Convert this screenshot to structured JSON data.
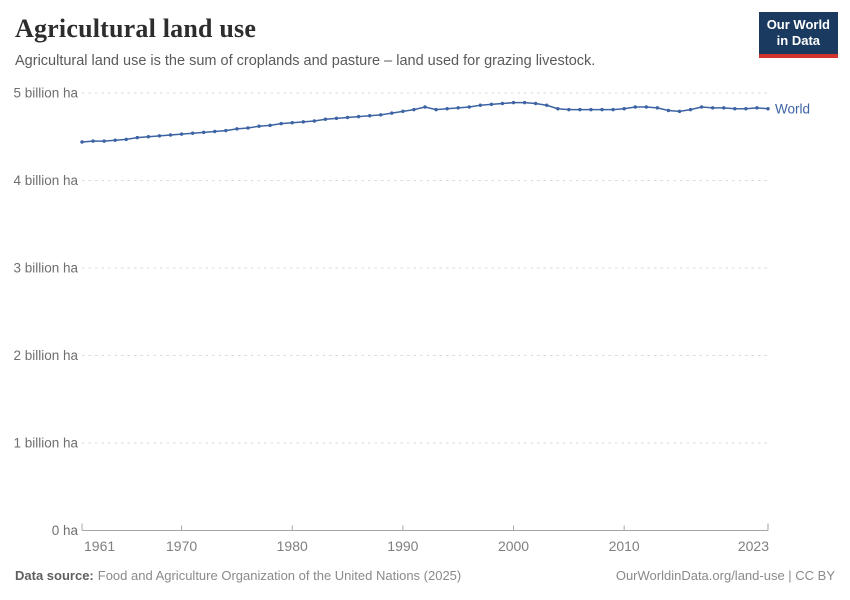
{
  "header": {
    "title": "Agricultural land use",
    "subtitle": "Agricultural land use is the sum of croplands and pasture – land used for grazing livestock.",
    "logo": {
      "line1": "Our World",
      "line2": "in Data"
    }
  },
  "chart_data": {
    "type": "line",
    "title": "Agricultural land use",
    "xlabel": "",
    "ylabel": "",
    "unit": "billion ha",
    "xlim": [
      1961,
      2023
    ],
    "ylim": [
      0,
      5
    ],
    "grid": "horizontal-dashed",
    "legend_position": "end-of-line-label",
    "xticks": [
      1961,
      1970,
      1980,
      1990,
      2000,
      2010,
      2023
    ],
    "yticks": [
      {
        "value": 0,
        "label": "0 ha"
      },
      {
        "value": 1,
        "label": "1 billion ha"
      },
      {
        "value": 2,
        "label": "2 billion ha"
      },
      {
        "value": 3,
        "label": "3 billion ha"
      },
      {
        "value": 4,
        "label": "4 billion ha"
      },
      {
        "value": 5,
        "label": "5 billion ha"
      }
    ],
    "x": [
      1961,
      1962,
      1963,
      1964,
      1965,
      1966,
      1967,
      1968,
      1969,
      1970,
      1971,
      1972,
      1973,
      1974,
      1975,
      1976,
      1977,
      1978,
      1979,
      1980,
      1981,
      1982,
      1983,
      1984,
      1985,
      1986,
      1987,
      1988,
      1989,
      1990,
      1991,
      1992,
      1993,
      1994,
      1995,
      1996,
      1997,
      1998,
      1999,
      2000,
      2001,
      2002,
      2003,
      2004,
      2005,
      2006,
      2007,
      2008,
      2009,
      2010,
      2011,
      2012,
      2013,
      2014,
      2015,
      2016,
      2017,
      2018,
      2019,
      2020,
      2021,
      2022,
      2023
    ],
    "series": [
      {
        "name": "World",
        "color": "#3d63a3",
        "values": [
          4.44,
          4.45,
          4.45,
          4.46,
          4.47,
          4.49,
          4.5,
          4.51,
          4.52,
          4.53,
          4.54,
          4.55,
          4.56,
          4.57,
          4.59,
          4.6,
          4.62,
          4.63,
          4.65,
          4.66,
          4.67,
          4.68,
          4.7,
          4.71,
          4.72,
          4.73,
          4.74,
          4.75,
          4.77,
          4.79,
          4.81,
          4.84,
          4.81,
          4.82,
          4.83,
          4.84,
          4.86,
          4.87,
          4.88,
          4.89,
          4.89,
          4.88,
          4.86,
          4.82,
          4.81,
          4.81,
          4.81,
          4.81,
          4.81,
          4.82,
          4.84,
          4.84,
          4.83,
          4.8,
          4.79,
          4.81,
          4.84,
          4.83,
          4.83,
          4.82,
          4.82,
          4.83,
          4.82
        ]
      }
    ]
  },
  "footer": {
    "source_label": "Data source:",
    "source_text": "Food and Agriculture Organization of the United Nations (2025)",
    "rights": "OurWorldinData.org/land-use | CC BY"
  },
  "colors": {
    "line": "#3d63a3",
    "logo_bg": "#1a3a5f",
    "accent_red": "#d0342c",
    "gridline": "#d9d9d9",
    "axis": "#a6a6a6",
    "tick_label": "#6f6f6f"
  }
}
